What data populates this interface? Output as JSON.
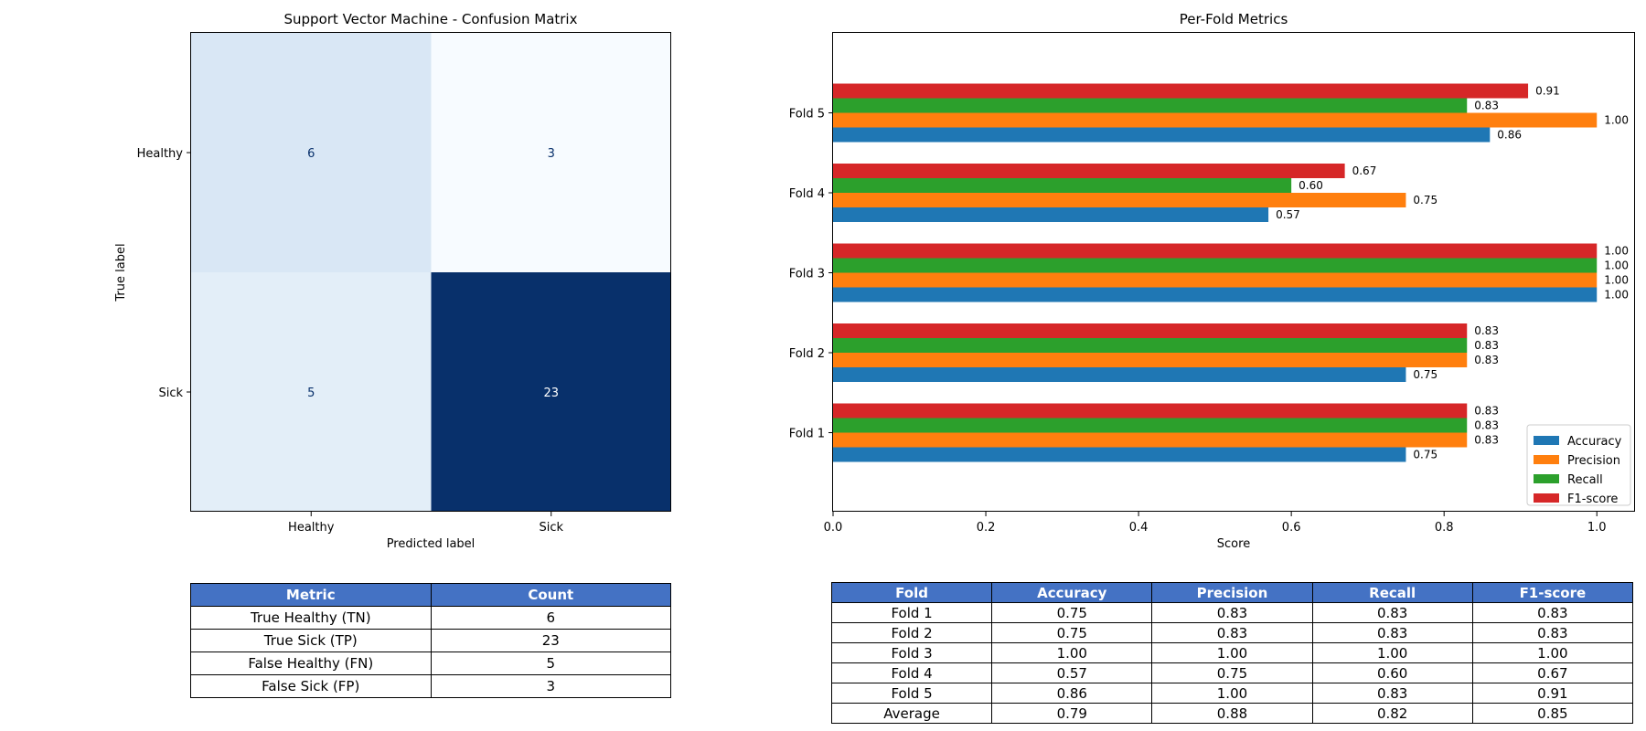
{
  "confusion": {
    "title": "Support Vector Machine - Confusion Matrix",
    "xlabel": "Predicted label",
    "ylabel": "True label",
    "row_labels": [
      "Healthy",
      "Sick"
    ],
    "col_labels": [
      "Healthy",
      "Sick"
    ],
    "cells": [
      [
        6,
        3
      ],
      [
        5,
        23
      ]
    ],
    "colormap": "Blues",
    "colors": {
      "low": "#f7fbff",
      "mid": "#d9e7f5",
      "high": "#08306b",
      "text_dark": "#08306b",
      "text_light": "#ffffff"
    }
  },
  "chart_data": {
    "type": "bar",
    "orientation": "horizontal",
    "title": "Per-Fold Metrics",
    "xlabel": "Score",
    "ylabel": "",
    "categories": [
      "Fold 1",
      "Fold 2",
      "Fold 3",
      "Fold 4",
      "Fold 5"
    ],
    "xlim": [
      0,
      1.05
    ],
    "xticks": [
      "0.0",
      "0.2",
      "0.4",
      "0.6",
      "0.8",
      "1.0"
    ],
    "grid": false,
    "legend_position": "lower-right",
    "series": [
      {
        "name": "Accuracy",
        "color": "#1f77b4",
        "values": [
          0.75,
          0.75,
          1.0,
          0.57,
          0.86
        ]
      },
      {
        "name": "Precision",
        "color": "#ff7f0e",
        "values": [
          0.83,
          0.83,
          1.0,
          0.75,
          1.0
        ]
      },
      {
        "name": "Recall",
        "color": "#2ca02c",
        "values": [
          0.83,
          0.83,
          1.0,
          0.6,
          0.83
        ]
      },
      {
        "name": "F1-score",
        "color": "#d62728",
        "values": [
          0.83,
          0.83,
          1.0,
          0.67,
          0.91
        ]
      }
    ]
  },
  "cm_table": {
    "headers": [
      "Metric",
      "Count"
    ],
    "rows": [
      [
        "True Healthy (TN)",
        "6"
      ],
      [
        "True Sick (TP)",
        "23"
      ],
      [
        "False Healthy (FN)",
        "5"
      ],
      [
        "False Sick (FP)",
        "3"
      ]
    ]
  },
  "fold_table": {
    "headers": [
      "Fold",
      "Accuracy",
      "Precision",
      "Recall",
      "F1-score"
    ],
    "rows": [
      [
        "Fold 1",
        "0.75",
        "0.83",
        "0.83",
        "0.83"
      ],
      [
        "Fold 2",
        "0.75",
        "0.83",
        "0.83",
        "0.83"
      ],
      [
        "Fold 3",
        "1.00",
        "1.00",
        "1.00",
        "1.00"
      ],
      [
        "Fold 4",
        "0.57",
        "0.75",
        "0.60",
        "0.67"
      ],
      [
        "Fold 5",
        "0.86",
        "1.00",
        "0.83",
        "0.91"
      ],
      [
        "Average",
        "0.79",
        "0.88",
        "0.82",
        "0.85"
      ]
    ]
  },
  "header_color": "#4472c4"
}
